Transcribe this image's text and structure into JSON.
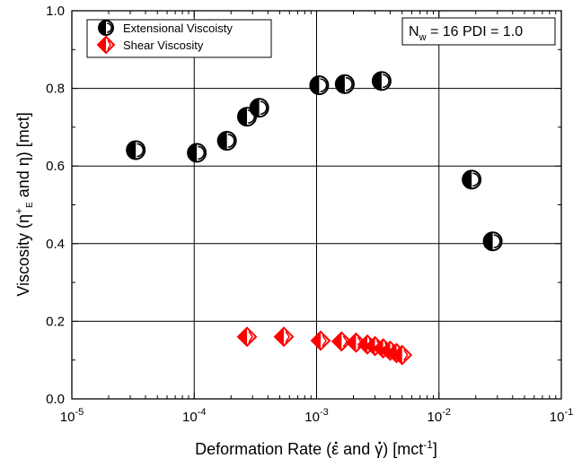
{
  "chart_data": {
    "type": "scatter",
    "xscale": "log",
    "xlim": [
      1e-05,
      0.1
    ],
    "ylim": [
      0.0,
      1.0
    ],
    "grid": true,
    "legend_position": "top-left",
    "x_tick_labels": [
      {
        "base": "10",
        "exp": "-5"
      },
      {
        "base": "10",
        "exp": "-4"
      },
      {
        "base": "10",
        "exp": "-3"
      },
      {
        "base": "10",
        "exp": "-2"
      },
      {
        "base": "10",
        "exp": "-1"
      }
    ],
    "y_ticks": [
      0.0,
      0.2,
      0.4,
      0.6,
      0.8,
      1.0
    ],
    "y_tick_labels": [
      "0.0",
      "0.2",
      "0.4",
      "0.6",
      "0.8",
      "1.0"
    ],
    "xlabel": {
      "pre": "Deformation Rate (",
      "eps": "ε",
      "mid": " and ",
      "gam": "γ",
      "post": ") [mct",
      "sup": "-1",
      "end": "]"
    },
    "ylabel": {
      "pre": "Viscosity (η",
      "sup": "+",
      "sub": "E",
      "post": " and η) [mct]"
    },
    "annotation": {
      "pre": "N",
      "sub": "w",
      "post": " = 16 PDI = 1.0"
    },
    "series": [
      {
        "name": "Extensional Viscoisty",
        "marker": "half-filled-circle",
        "color": "#000000",
        "points": [
          {
            "x": 3.33e-05,
            "y": 0.641
          },
          {
            "x": 0.000105,
            "y": 0.634
          },
          {
            "x": 0.000185,
            "y": 0.665
          },
          {
            "x": 0.00027,
            "y": 0.727
          },
          {
            "x": 0.00034,
            "y": 0.75
          },
          {
            "x": 0.00105,
            "y": 0.808
          },
          {
            "x": 0.0017,
            "y": 0.811
          },
          {
            "x": 0.0034,
            "y": 0.819
          },
          {
            "x": 0.0185,
            "y": 0.565
          },
          {
            "x": 0.0275,
            "y": 0.406
          }
        ]
      },
      {
        "name": "Shear Viscosity",
        "marker": "half-filled-diamond",
        "color": "#ff0000",
        "points": [
          {
            "x": 0.00027,
            "y": 0.16
          },
          {
            "x": 0.00054,
            "y": 0.16
          },
          {
            "x": 0.00108,
            "y": 0.15
          },
          {
            "x": 0.0016,
            "y": 0.148
          },
          {
            "x": 0.0021,
            "y": 0.145
          },
          {
            "x": 0.0026,
            "y": 0.14
          },
          {
            "x": 0.003,
            "y": 0.136
          },
          {
            "x": 0.0035,
            "y": 0.13
          },
          {
            "x": 0.004,
            "y": 0.124
          },
          {
            "x": 0.0045,
            "y": 0.118
          },
          {
            "x": 0.005,
            "y": 0.113
          }
        ]
      }
    ]
  }
}
